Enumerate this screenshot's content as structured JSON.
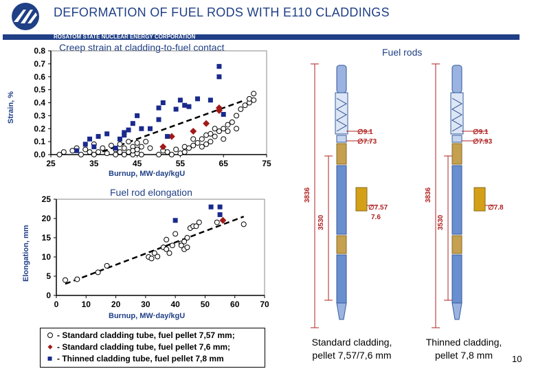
{
  "header": {
    "title": "DEFORMATION OF FUEL RODS WITH E110 CLADDINGS",
    "corporation": "ROSATOM STATE NUCLEAR ENERGY CORPORATION"
  },
  "colors": {
    "brand_blue": "#1f3f86",
    "marker_blue": "#1a2a8c",
    "marker_red": "#a01a1a",
    "rod_blue": "#6a8fcf",
    "pellet_gold": "#d4a017"
  },
  "legend": {
    "items": [
      {
        "symbol": "open-circle",
        "label": "- Standard cladding tube, fuel pellet 7,57 mm;"
      },
      {
        "symbol": "red-diamond",
        "label": "- Standard cladding tube, fuel pellet 7,6 mm;"
      },
      {
        "symbol": "blue-square",
        "label": "- Thinned cladding tube, fuel pellet 7,8 mm"
      }
    ]
  },
  "rods": {
    "title": "Fuel rods",
    "standard": {
      "caption_line1": "Standard cladding,",
      "caption_line2": "pellet 7,57/7,6 mm",
      "dim_outer": "∅9.1",
      "dim_inner": "∅7.73",
      "dim_pellet_a": "∅7.57",
      "dim_pellet_b": "7.6",
      "length_total": "3836",
      "length_fuel": "3530"
    },
    "thinned": {
      "caption_line1": "Thinned cladding,",
      "caption_line2": "pellet 7,8 mm",
      "dim_outer": "∅9.1",
      "dim_inner": "∅7.93",
      "dim_pellet": "∅7.8",
      "length_total": "3836",
      "length_fuel": "3530"
    }
  },
  "page_number": "10",
  "chart_data": [
    {
      "type": "scatter",
      "title": "Creep strain at cladding-to-fuel contact",
      "xlabel": "Burnup, MW·day/kgU",
      "ylabel": "Strain, %",
      "xlim": [
        25,
        75
      ],
      "ylim": [
        0,
        0.8
      ],
      "xticks": [
        "25",
        "35",
        "45",
        "55",
        "65",
        "75"
      ],
      "yticks": [
        "0.0",
        "0.1",
        "0.2",
        "0.3",
        "0.4",
        "0.5",
        "0.6",
        "0.7",
        "0.8"
      ],
      "grid": false,
      "series": [
        {
          "name": "- Standard cladding tube, fuel pellet 7,57 mm;",
          "marker": "open-circle",
          "x": [
            27,
            28,
            30,
            31,
            32,
            33,
            34,
            35,
            35,
            36,
            37,
            38,
            39,
            40,
            40,
            41,
            41,
            42,
            42,
            43,
            43,
            44,
            44,
            44,
            45,
            45,
            45,
            46,
            46,
            47,
            48,
            50,
            51,
            52,
            53,
            54,
            55,
            56,
            56,
            57,
            58,
            58,
            59,
            60,
            60,
            61,
            61,
            62,
            62,
            63,
            63,
            64,
            65,
            65,
            66,
            66,
            67,
            68,
            68,
            69,
            70,
            71,
            71,
            72,
            72
          ],
          "y": [
            0.0,
            0.02,
            0.03,
            0.05,
            0.0,
            0.04,
            0.02,
            0.0,
            0.08,
            0.02,
            0.05,
            0.01,
            0.07,
            0.0,
            0.04,
            0.02,
            0.08,
            0.0,
            0.05,
            0.02,
            0.1,
            0.0,
            0.06,
            0.03,
            0.01,
            0.09,
            0.04,
            0.0,
            0.06,
            0.1,
            0.05,
            0.0,
            0.03,
            0.02,
            0.0,
            0.04,
            0.01,
            0.06,
            0.02,
            0.05,
            0.12,
            0.07,
            0.09,
            0.12,
            0.06,
            0.15,
            0.08,
            0.16,
            0.1,
            0.14,
            0.2,
            0.18,
            0.2,
            0.12,
            0.23,
            0.18,
            0.25,
            0.2,
            0.3,
            0.35,
            0.38,
            0.4,
            0.43,
            0.42,
            0.47
          ]
        },
        {
          "name": "- Standard cladding tube, fuel pellet 7,6 mm;",
          "marker": "red-diamond",
          "x": [
            51,
            53,
            58,
            61,
            64,
            64
          ],
          "y": [
            0.06,
            0.14,
            0.18,
            0.24,
            0.36,
            0.34
          ]
        },
        {
          "name": "- Thinned cladding tube, fuel pellet 7,8 mm",
          "marker": "blue-square",
          "x": [
            31,
            33,
            34,
            35,
            36,
            38,
            40,
            41,
            42,
            42,
            43,
            44,
            45,
            46,
            48,
            50,
            50,
            51,
            52,
            54,
            55,
            56,
            57,
            59,
            62,
            64,
            64,
            65
          ],
          "y": [
            0.03,
            0.08,
            0.12,
            0.06,
            0.14,
            0.16,
            0.05,
            0.12,
            0.15,
            0.17,
            0.19,
            0.24,
            0.3,
            0.2,
            0.2,
            0.36,
            0.27,
            0.4,
            0.14,
            0.35,
            0.42,
            0.38,
            0.37,
            0.43,
            0.42,
            0.68,
            0.6,
            0.31
          ]
        }
      ]
    },
    {
      "type": "scatter",
      "title": "Fuel rod elongation",
      "xlabel": "Burnup, MW·day/kgU",
      "ylabel": "Elongation, mm",
      "xlim": [
        0,
        70
      ],
      "ylim": [
        0,
        25
      ],
      "xticks": [
        "0",
        "10",
        "20",
        "30",
        "40",
        "50",
        "60",
        "70"
      ],
      "yticks": [
        "0",
        "5",
        "10",
        "15",
        "20",
        "25"
      ],
      "grid": false,
      "series": [
        {
          "name": "- Standard cladding tube, fuel pellet 7,57 mm;",
          "marker": "open-circle",
          "x": [
            3,
            7,
            14,
            17,
            31,
            32,
            33,
            34,
            36,
            37,
            37,
            38,
            39,
            40,
            42,
            42,
            43,
            43,
            44,
            44,
            45,
            46,
            47,
            48,
            54,
            63
          ],
          "y": [
            4,
            4.2,
            6,
            7.7,
            10,
            9.6,
            11,
            10.1,
            12.5,
            14.5,
            12,
            11,
            13,
            16,
            13.5,
            13,
            14,
            12,
            15,
            12.5,
            17.5,
            18,
            18,
            19,
            19,
            18.5
          ]
        },
        {
          "name": "- Standard cladding tube, fuel pellet 7,6 mm;",
          "marker": "red-diamond",
          "x": [
            56
          ],
          "y": [
            19.5
          ]
        },
        {
          "name": "- Thinned cladding tube, fuel pellet 7,8 mm",
          "marker": "blue-square",
          "x": [
            40,
            52,
            55,
            55
          ],
          "y": [
            19.5,
            23,
            23,
            21
          ]
        }
      ]
    }
  ]
}
